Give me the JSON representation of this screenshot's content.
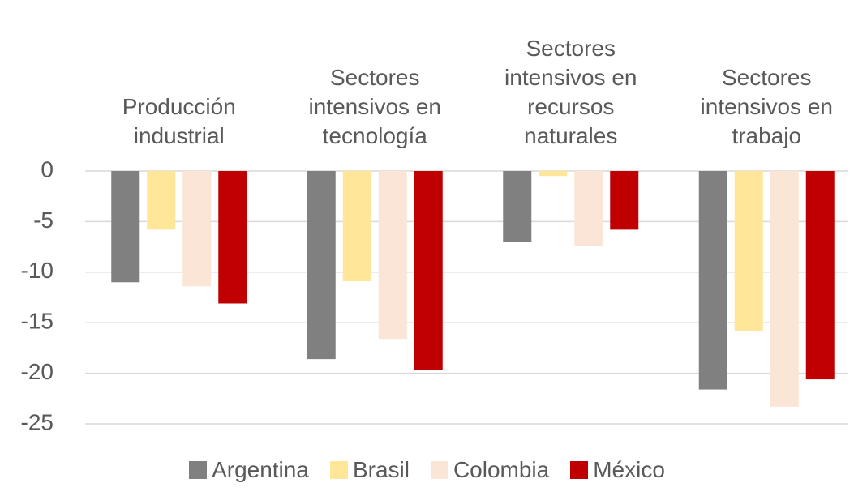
{
  "chart_data": {
    "type": "bar",
    "categories": [
      "Producción industrial",
      "Sectores intensivos en tecnología",
      "Sectores intensivos en recursos naturales",
      "Sectores intensivos en trabajo"
    ],
    "series": [
      {
        "name": "Argentina",
        "color": "#808080",
        "values": [
          -11.0,
          -18.6,
          -7.0,
          -21.6
        ]
      },
      {
        "name": "Brasil",
        "color": "#ffe699",
        "values": [
          -5.8,
          -10.9,
          -0.5,
          -15.8
        ]
      },
      {
        "name": "Colombia",
        "color": "#fbe5d6",
        "values": [
          -11.4,
          -16.6,
          -7.4,
          -23.3
        ]
      },
      {
        "name": "México",
        "color": "#c00000",
        "values": [
          -13.1,
          -19.7,
          -5.8,
          -20.6
        ]
      }
    ],
    "ylim": [
      -25,
      0
    ],
    "yticks": [
      0,
      -5,
      -10,
      -15,
      -20,
      -25
    ],
    "grid": true,
    "legend": "bottom"
  }
}
